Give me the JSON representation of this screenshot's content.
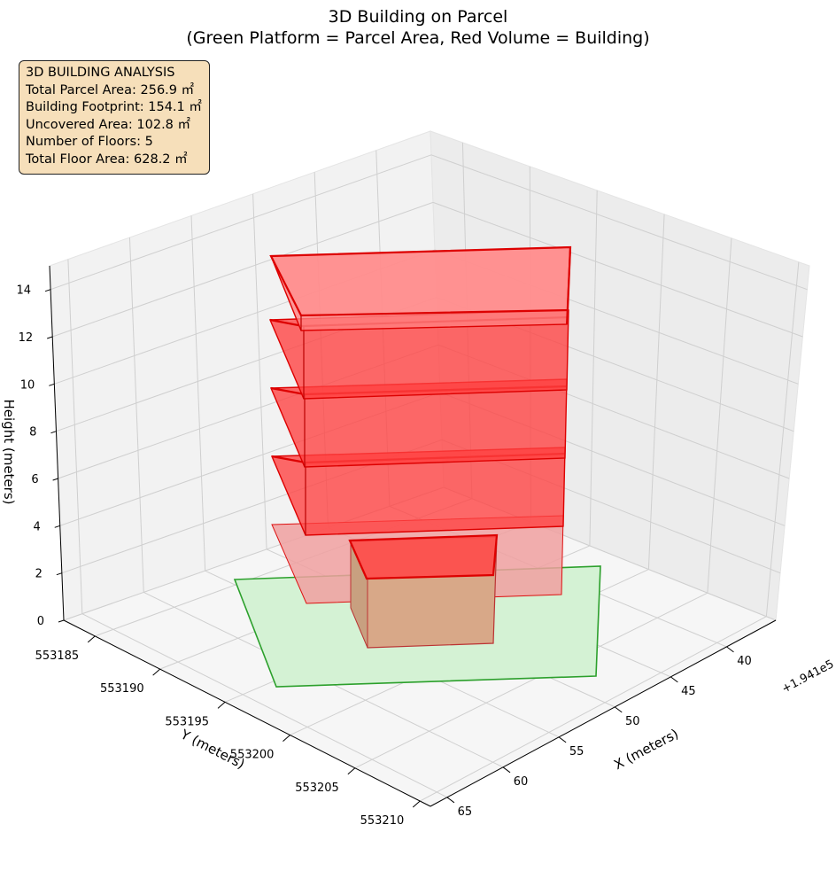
{
  "chart_data": {
    "type": "3d-bar",
    "title": "3D Building on Parcel",
    "subtitle": "(Green Platform = Parcel Area, Red Volume = Building)",
    "xlabel": "X (meters)",
    "ylabel": "Y (meters)",
    "zlabel": "Height (meters)",
    "x_ticks": [
      "40",
      "45",
      "50",
      "55",
      "60",
      "65"
    ],
    "x_offset_label": "+1.941e5",
    "y_ticks": [
      "553185",
      "553190",
      "553195",
      "553200",
      "553205",
      "553210"
    ],
    "z_ticks": [
      "0",
      "2",
      "4",
      "6",
      "8",
      "10",
      "12",
      "14"
    ],
    "xlim": [
      194135.6,
      194166.5
    ],
    "ylim": [
      553182.6,
      553210.8
    ],
    "zlim": [
      0,
      15
    ],
    "grid": true,
    "colors": {
      "parcel": "#2ca02c",
      "building": "#ff0000"
    },
    "floors": 5,
    "floor_height": 2.8
  },
  "info": {
    "header": "3D BUILDING ANALYSIS",
    "lines": [
      "Total Parcel Area: 256.9 ㎡",
      "Building Footprint: 154.1 ㎡",
      "Uncovered Area: 102.8 ㎡",
      "Number of Floors: 5",
      "Total Floor Area: 628.2 ㎡"
    ]
  }
}
